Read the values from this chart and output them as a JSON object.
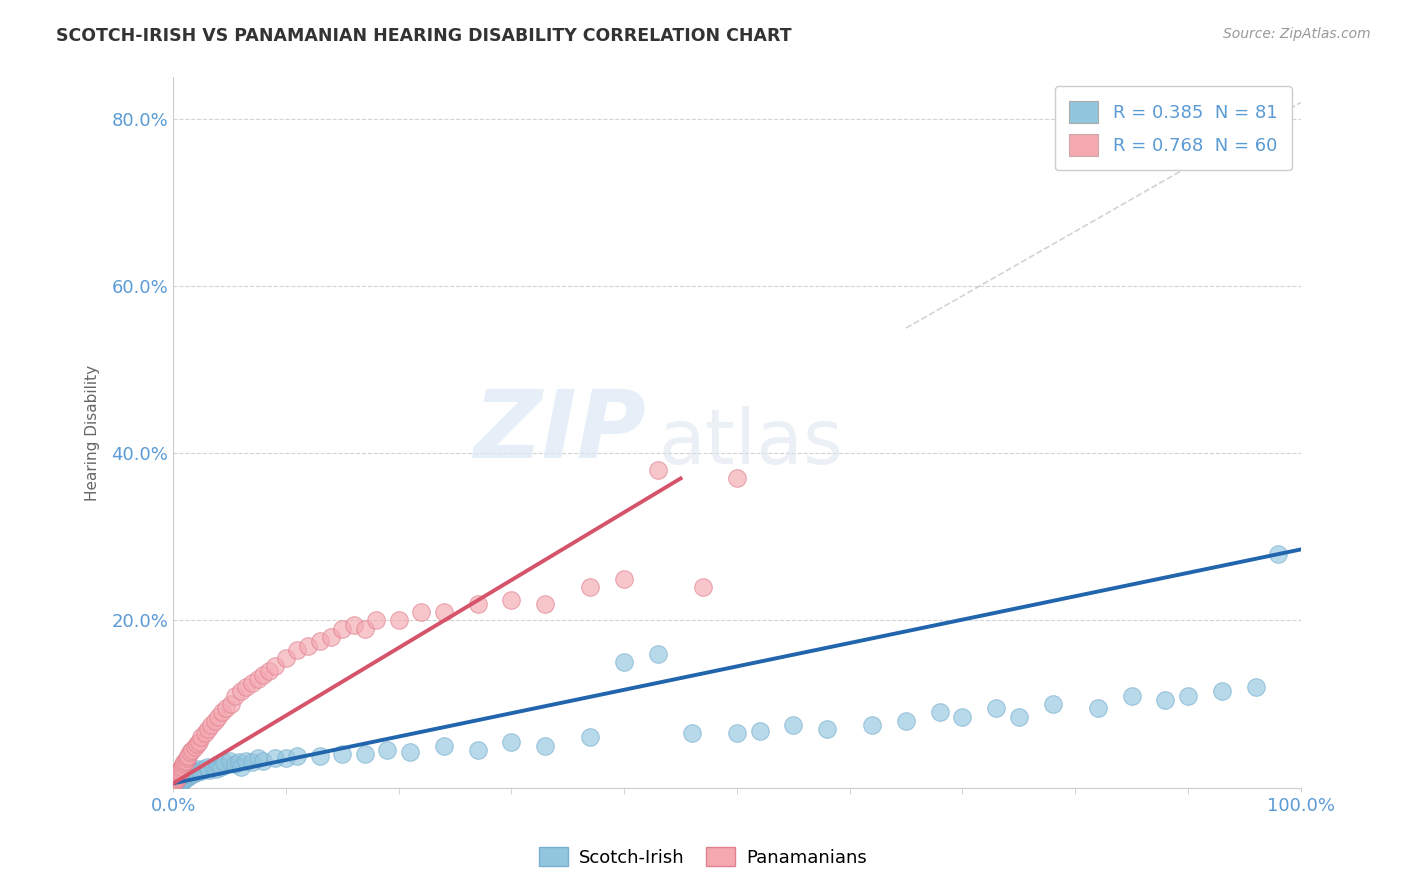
{
  "title": "SCOTCH-IRISH VS PANAMANIAN HEARING DISABILITY CORRELATION CHART",
  "source": "Source: ZipAtlas.com",
  "ylabel": "Hearing Disability",
  "legend_labels": [
    "Scotch-Irish",
    "Panamanians"
  ],
  "legend_r": [
    0.385,
    0.768
  ],
  "legend_n": [
    81,
    60
  ],
  "watermark_zip": "ZIP",
  "watermark_atlas": "atlas",
  "blue_color": "#92c5de",
  "pink_color": "#f4a8b0",
  "blue_line_color": "#2166ac",
  "pink_line_color": "#d6546a",
  "dashed_line_color": "#c8c8c8",
  "title_color": "#333333",
  "axis_label_color": "#5b9bd5",
  "background_color": "#ffffff",
  "plot_bg_color": "#ffffff",
  "blue_line_x0": 0.0,
  "blue_line_y0": 0.005,
  "blue_line_x1": 1.0,
  "blue_line_y1": 0.285,
  "pink_line_x0": 0.0,
  "pink_line_y0": 0.005,
  "pink_line_x1": 0.45,
  "pink_line_y1": 0.37,
  "diag_line_x0": 0.65,
  "diag_line_y0": 0.55,
  "diag_line_x1": 1.0,
  "diag_line_y1": 0.82,
  "scotch_irish_x": [
    0.001,
    0.001,
    0.002,
    0.002,
    0.003,
    0.003,
    0.004,
    0.004,
    0.005,
    0.005,
    0.006,
    0.006,
    0.007,
    0.007,
    0.008,
    0.009,
    0.009,
    0.01,
    0.01,
    0.011,
    0.012,
    0.013,
    0.014,
    0.015,
    0.016,
    0.017,
    0.018,
    0.02,
    0.021,
    0.022,
    0.025,
    0.027,
    0.03,
    0.032,
    0.035,
    0.038,
    0.04,
    0.042,
    0.045,
    0.05,
    0.055,
    0.058,
    0.06,
    0.065,
    0.07,
    0.075,
    0.08,
    0.09,
    0.1,
    0.11,
    0.13,
    0.15,
    0.17,
    0.19,
    0.21,
    0.24,
    0.27,
    0.3,
    0.33,
    0.37,
    0.4,
    0.43,
    0.46,
    0.5,
    0.52,
    0.55,
    0.58,
    0.62,
    0.65,
    0.68,
    0.7,
    0.73,
    0.75,
    0.78,
    0.82,
    0.85,
    0.88,
    0.9,
    0.93,
    0.96,
    0.98
  ],
  "scotch_irish_y": [
    0.005,
    0.008,
    0.006,
    0.01,
    0.005,
    0.009,
    0.007,
    0.011,
    0.006,
    0.01,
    0.008,
    0.012,
    0.007,
    0.013,
    0.009,
    0.008,
    0.014,
    0.01,
    0.016,
    0.012,
    0.014,
    0.013,
    0.016,
    0.015,
    0.017,
    0.018,
    0.016,
    0.02,
    0.018,
    0.022,
    0.02,
    0.022,
    0.025,
    0.021,
    0.024,
    0.022,
    0.028,
    0.025,
    0.03,
    0.032,
    0.028,
    0.03,
    0.025,
    0.032,
    0.03,
    0.035,
    0.032,
    0.035,
    0.035,
    0.038,
    0.038,
    0.04,
    0.04,
    0.045,
    0.042,
    0.05,
    0.045,
    0.055,
    0.05,
    0.06,
    0.15,
    0.16,
    0.065,
    0.065,
    0.068,
    0.075,
    0.07,
    0.075,
    0.08,
    0.09,
    0.085,
    0.095,
    0.085,
    0.1,
    0.095,
    0.11,
    0.105,
    0.11,
    0.115,
    0.12,
    0.28
  ],
  "panamanians_x": [
    0.001,
    0.001,
    0.002,
    0.002,
    0.003,
    0.003,
    0.004,
    0.004,
    0.005,
    0.005,
    0.006,
    0.007,
    0.008,
    0.009,
    0.01,
    0.011,
    0.012,
    0.013,
    0.015,
    0.017,
    0.019,
    0.021,
    0.023,
    0.025,
    0.028,
    0.031,
    0.034,
    0.037,
    0.04,
    0.043,
    0.047,
    0.051,
    0.055,
    0.06,
    0.065,
    0.07,
    0.075,
    0.08,
    0.085,
    0.09,
    0.1,
    0.11,
    0.12,
    0.13,
    0.14,
    0.15,
    0.16,
    0.17,
    0.18,
    0.2,
    0.22,
    0.24,
    0.27,
    0.3,
    0.33,
    0.37,
    0.4,
    0.43,
    0.47,
    0.5
  ],
  "panamanians_y": [
    0.005,
    0.009,
    0.008,
    0.012,
    0.01,
    0.015,
    0.013,
    0.018,
    0.015,
    0.02,
    0.018,
    0.022,
    0.025,
    0.028,
    0.03,
    0.032,
    0.035,
    0.038,
    0.042,
    0.045,
    0.048,
    0.052,
    0.055,
    0.06,
    0.065,
    0.07,
    0.075,
    0.08,
    0.085,
    0.09,
    0.095,
    0.1,
    0.11,
    0.115,
    0.12,
    0.125,
    0.13,
    0.135,
    0.14,
    0.145,
    0.155,
    0.165,
    0.17,
    0.175,
    0.18,
    0.19,
    0.195,
    0.19,
    0.2,
    0.2,
    0.21,
    0.21,
    0.22,
    0.225,
    0.22,
    0.24,
    0.25,
    0.38,
    0.24,
    0.37
  ],
  "xlim": [
    0.0,
    1.0
  ],
  "ylim": [
    0.0,
    0.85
  ],
  "yticks": [
    0.0,
    0.2,
    0.4,
    0.6,
    0.8
  ],
  "ytick_labels": [
    "",
    "20.0%",
    "40.0%",
    "60.0%",
    "80.0%"
  ],
  "xtick_labels": [
    "0.0%",
    "100.0%"
  ]
}
